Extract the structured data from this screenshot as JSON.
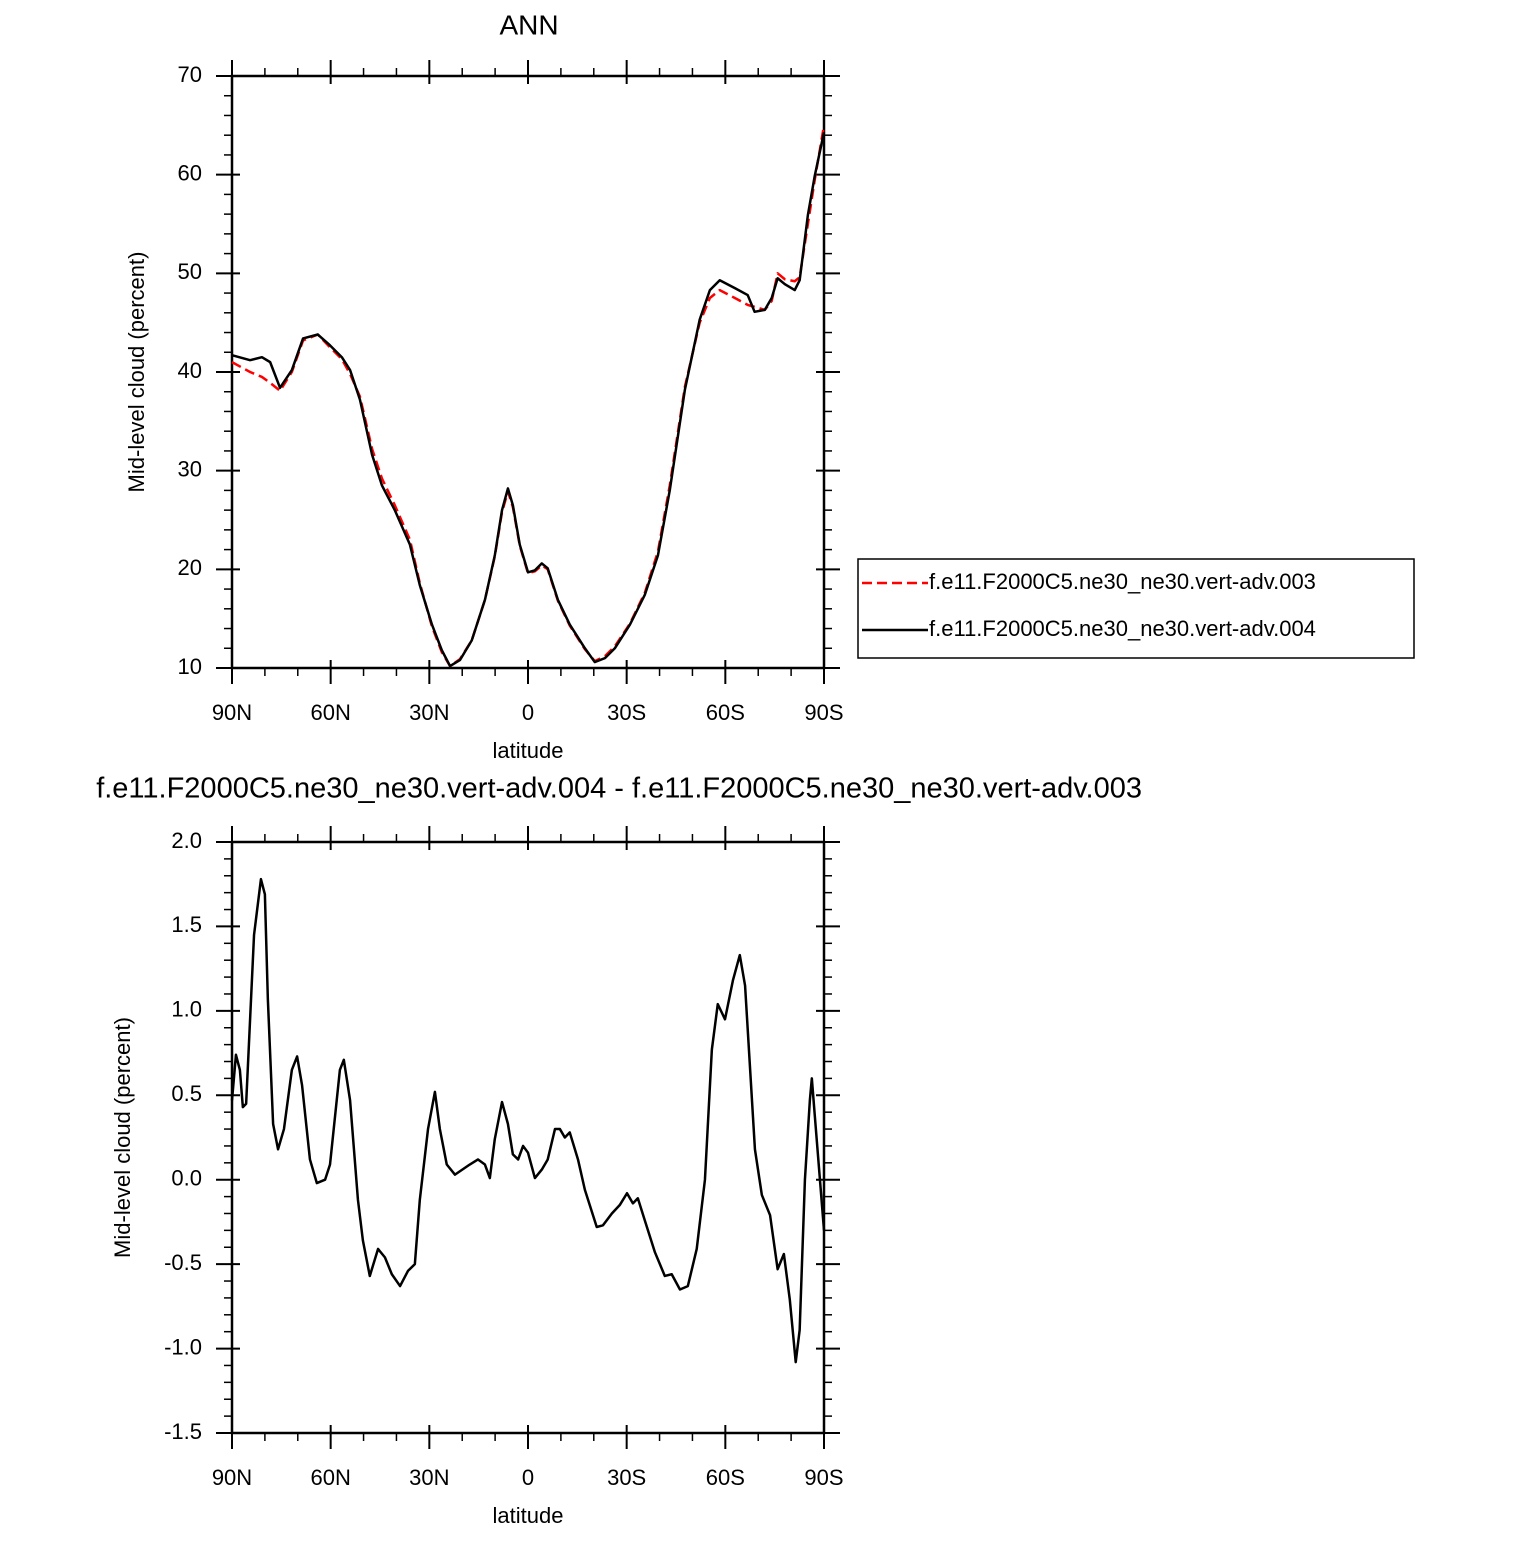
{
  "chart_data": [
    {
      "type": "line",
      "title": "ANN",
      "xlabel": "latitude",
      "ylabel": "Mid-level cloud (percent)",
      "x": [
        90,
        84.5,
        80.9,
        78.4,
        75.4,
        71.8,
        68.4,
        63.9,
        60.2,
        56.6,
        54.1,
        51.1,
        47.4,
        44.4,
        40.5,
        35.9,
        32.9,
        29.2,
        26.2,
        23.7,
        20.7,
        17.1,
        13.1,
        10.1,
        7.9,
        6.1,
        4.6,
        2.5,
        0,
        -2.1,
        -4.2,
        -6,
        -9.1,
        -12.7,
        -17.3,
        -20.3,
        -23.4,
        -26.4,
        -31,
        -35.5,
        -39.5,
        -43.1,
        -47.7,
        -52.2,
        -55.3,
        -58.3,
        -62.9,
        -66.8,
        -68.9,
        -72,
        -74.1,
        -75.9,
        -78.1,
        -81.1,
        -82.6,
        -85.1,
        -87.2,
        -90
      ],
      "series": [
        {
          "name": "f.e11.F2000C5.ne30_ne30.vert-adv.003",
          "color": "#ff0000",
          "linestyle": "dashed",
          "values": [
            41,
            40,
            39.5,
            38.9,
            38.1,
            40,
            43.2,
            43.8,
            42.5,
            41.3,
            39.8,
            37.5,
            32.2,
            29.2,
            26.5,
            23,
            18.6,
            14.2,
            11.6,
            10.2,
            10.9,
            12.8,
            16.9,
            21.3,
            25.8,
            27.9,
            26.3,
            22.4,
            19.6,
            19.8,
            20.4,
            20,
            16.8,
            14.3,
            11.9,
            10.7,
            11.2,
            12.2,
            14.5,
            17.6,
            21.8,
            28.5,
            38.5,
            45,
            47.5,
            48.3,
            47.5,
            46.8,
            46.6,
            46.3,
            47.2,
            50,
            49.4,
            49.2,
            49.6,
            55,
            59.5,
            65
          ]
        },
        {
          "name": "f.e11.F2000C5.ne30_ne30.vert-adv.004",
          "color": "#000000",
          "linestyle": "solid",
          "values": [
            41.7,
            41.2,
            41.5,
            41,
            38.4,
            40.2,
            43.4,
            43.8,
            42.7,
            41.5,
            40.2,
            37.2,
            31.6,
            28.5,
            26,
            22.5,
            18.4,
            14.4,
            11.8,
            10.2,
            10.8,
            12.8,
            16.9,
            21.4,
            26,
            28.2,
            26.5,
            22.5,
            19.7,
            19.9,
            20.6,
            20.1,
            16.9,
            14.4,
            12,
            10.6,
            11,
            12,
            14.4,
            17.4,
            21.4,
            28,
            38.2,
            45.3,
            48.3,
            49.3,
            48.5,
            47.8,
            46.1,
            46.3,
            47.5,
            49.5,
            48.9,
            48.3,
            49.3,
            55.9,
            59.9,
            64.3
          ]
        }
      ],
      "xlim": [
        90,
        -90
      ],
      "xticks": [
        {
          "value": 90,
          "label": "90N"
        },
        {
          "value": 60,
          "label": "60N"
        },
        {
          "value": 30,
          "label": "30N"
        },
        0,
        {
          "value": -30,
          "label": "30S"
        },
        {
          "value": -60,
          "label": "60S"
        },
        {
          "value": -90,
          "label": "90S"
        }
      ],
      "ylim": [
        10,
        70
      ],
      "yticks": [
        10,
        20,
        30,
        40,
        50,
        60,
        70
      ],
      "legend": "right"
    },
    {
      "type": "line",
      "title": "f.e11.F2000C5.ne30_ne30.vert-adv.004 - f.e11.F2000C5.ne30_ne30.vert-adv.003",
      "xlabel": "latitude",
      "ylabel": "Mid-level cloud (percent)",
      "x": [
        90,
        88.8,
        87.6,
        86.7,
        85.7,
        83.3,
        81.2,
        80,
        79.1,
        77.5,
        76,
        74.2,
        71.8,
        70.2,
        68.7,
        66.3,
        64.2,
        61.7,
        60.2,
        57.2,
        56,
        54.1,
        51.7,
        50.2,
        48.1,
        45.6,
        43.5,
        41.4,
        38.9,
        36.5,
        34.4,
        32.9,
        30.4,
        28.3,
        26.8,
        24.7,
        22.2,
        17.7,
        15.2,
        13.1,
        11.6,
        10.1,
        7.9,
        6.1,
        4.6,
        3,
        1.5,
        0,
        -2.1,
        -4.2,
        -6,
        -8.2,
        -9.7,
        -11.2,
        -12.7,
        -15.2,
        -17.3,
        -20.9,
        -22.8,
        -25.5,
        -27.9,
        -30.1,
        -31.9,
        -33.4,
        -35.5,
        -38.6,
        -41.6,
        -43.7,
        -46.2,
        -48.6,
        -51.3,
        -53.8,
        -55.9,
        -57.7,
        -59.9,
        -62.3,
        -64.4,
        -66,
        -69,
        -71.1,
        -73.6,
        -75.9,
        -77.8,
        -79.6,
        -81.4,
        -82.6,
        -84.2,
        -85.7,
        -86.3,
        -87.2,
        -90
      ],
      "series": [
        {
          "color": "#000000",
          "linestyle": "solid",
          "values": [
            0.47,
            0.74,
            0.65,
            0.43,
            0.45,
            1.45,
            1.78,
            1.69,
            1.07,
            0.33,
            0.18,
            0.3,
            0.65,
            0.73,
            0.56,
            0.12,
            -0.02,
            0,
            0.09,
            0.65,
            0.71,
            0.47,
            -0.12,
            -0.36,
            -0.57,
            -0.41,
            -0.46,
            -0.56,
            -0.63,
            -0.54,
            -0.5,
            -0.12,
            0.3,
            0.52,
            0.3,
            0.09,
            0.03,
            0.09,
            0.12,
            0.09,
            0.01,
            0.24,
            0.46,
            0.33,
            0.15,
            0.12,
            0.2,
            0.16,
            0.01,
            0.06,
            0.12,
            0.3,
            0.3,
            0.25,
            0.28,
            0.12,
            -0.06,
            -0.28,
            -0.27,
            -0.2,
            -0.15,
            -0.08,
            -0.14,
            -0.11,
            -0.24,
            -0.43,
            -0.57,
            -0.56,
            -0.65,
            -0.63,
            -0.41,
            0,
            0.77,
            1.04,
            0.95,
            1.18,
            1.33,
            1.15,
            0.18,
            -0.09,
            -0.21,
            -0.53,
            -0.44,
            -0.71,
            -1.08,
            -0.89,
            0,
            0.47,
            0.6,
            0.38,
            -0.3
          ]
        }
      ],
      "xlim": [
        90,
        -90
      ],
      "xticks": [
        {
          "value": 90,
          "label": "90N"
        },
        {
          "value": 60,
          "label": "60N"
        },
        {
          "value": 30,
          "label": "30N"
        },
        0,
        {
          "value": -30,
          "label": "30S"
        },
        {
          "value": -60,
          "label": "60S"
        },
        {
          "value": -90,
          "label": "90S"
        }
      ],
      "ylim": [
        -1.5,
        2
      ],
      "yticks": [
        -1.5,
        {
          "value": -1,
          "label": "-1.0"
        },
        -0.5,
        {
          "value": 0,
          "label": "0.0"
        },
        0.5,
        {
          "value": 1,
          "label": "1.0"
        },
        1.5,
        {
          "value": 2,
          "label": "2.0"
        }
      ]
    }
  ]
}
